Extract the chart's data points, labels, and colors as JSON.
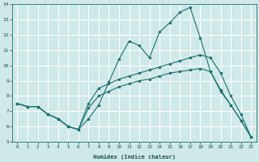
{
  "xlabel": "Humidex (Indice chaleur)",
  "bg_color": "#cfe8e8",
  "grid_color": "#ffffff",
  "line_color": "#1a7070",
  "xlim": [
    -0.5,
    23.5
  ],
  "ylim": [
    5,
    14
  ],
  "xticks": [
    0,
    1,
    2,
    3,
    4,
    5,
    6,
    7,
    8,
    9,
    10,
    11,
    12,
    13,
    14,
    15,
    16,
    17,
    18,
    19,
    20,
    21,
    22,
    23
  ],
  "yticks": [
    5,
    6,
    7,
    8,
    9,
    10,
    11,
    12,
    13,
    14
  ],
  "line1_x": [
    0,
    1,
    2,
    3,
    4,
    5,
    6,
    7,
    8,
    9,
    10,
    11,
    12,
    13,
    14,
    15,
    16,
    17,
    18,
    19,
    20,
    21,
    22,
    23
  ],
  "line1_y": [
    7.5,
    7.3,
    7.3,
    6.8,
    6.5,
    6.0,
    5.8,
    6.5,
    7.4,
    8.9,
    10.4,
    11.6,
    11.3,
    10.5,
    12.2,
    12.8,
    13.5,
    13.8,
    11.8,
    9.6,
    8.3,
    7.4,
    6.4,
    5.3
  ],
  "line2_x": [
    0,
    1,
    2,
    3,
    4,
    5,
    6,
    7,
    8,
    9,
    10,
    11,
    12,
    13,
    14,
    15,
    16,
    17,
    18,
    19,
    20,
    21,
    22,
    23
  ],
  "line2_y": [
    7.5,
    7.3,
    7.3,
    6.8,
    6.5,
    6.0,
    5.8,
    7.2,
    8.0,
    8.3,
    8.6,
    8.8,
    9.0,
    9.1,
    9.3,
    9.5,
    9.6,
    9.7,
    9.8,
    9.6,
    8.4,
    7.4,
    6.4,
    5.3
  ],
  "line3_x": [
    0,
    1,
    2,
    3,
    4,
    5,
    6,
    7,
    8,
    9,
    10,
    11,
    12,
    13,
    14,
    15,
    16,
    17,
    18,
    19,
    20,
    21,
    22,
    23
  ],
  "line3_y": [
    7.5,
    7.3,
    7.3,
    6.8,
    6.5,
    6.0,
    5.8,
    7.5,
    8.5,
    8.8,
    9.1,
    9.3,
    9.5,
    9.7,
    9.9,
    10.1,
    10.3,
    10.5,
    10.7,
    10.5,
    9.5,
    8.0,
    6.8,
    5.3
  ]
}
